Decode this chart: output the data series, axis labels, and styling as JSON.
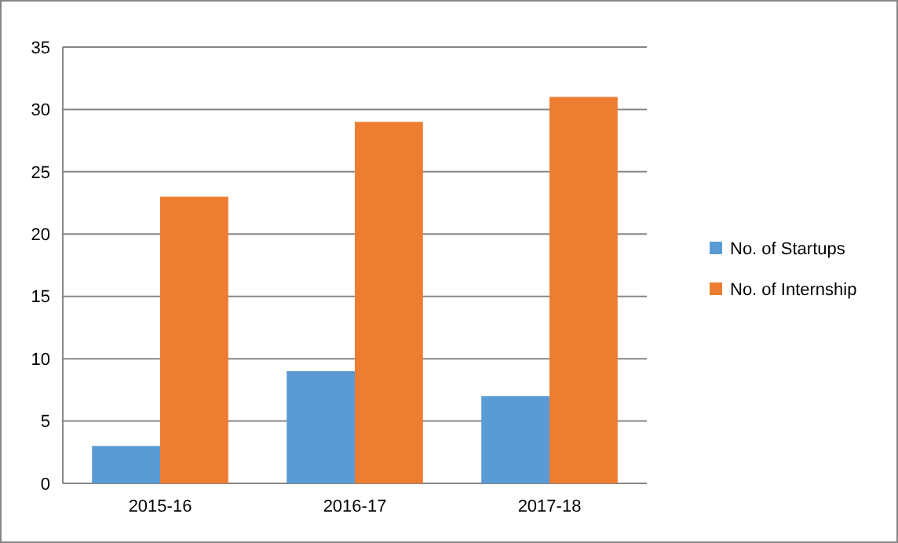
{
  "chart_data": {
    "type": "bar",
    "categories": [
      "2015-16",
      "2016-17",
      "2017-18"
    ],
    "series": [
      {
        "name": "No. of Startups",
        "color": "#5b9bd5",
        "values": [
          3,
          9,
          7
        ]
      },
      {
        "name": "No. of Internship",
        "color": "#ed7d31",
        "values": [
          23,
          29,
          31
        ]
      }
    ],
    "ylim": [
      0,
      35
    ],
    "yticks": [
      0,
      5,
      10,
      15,
      20,
      25,
      30,
      35
    ],
    "grid": "y",
    "legend": "right"
  }
}
